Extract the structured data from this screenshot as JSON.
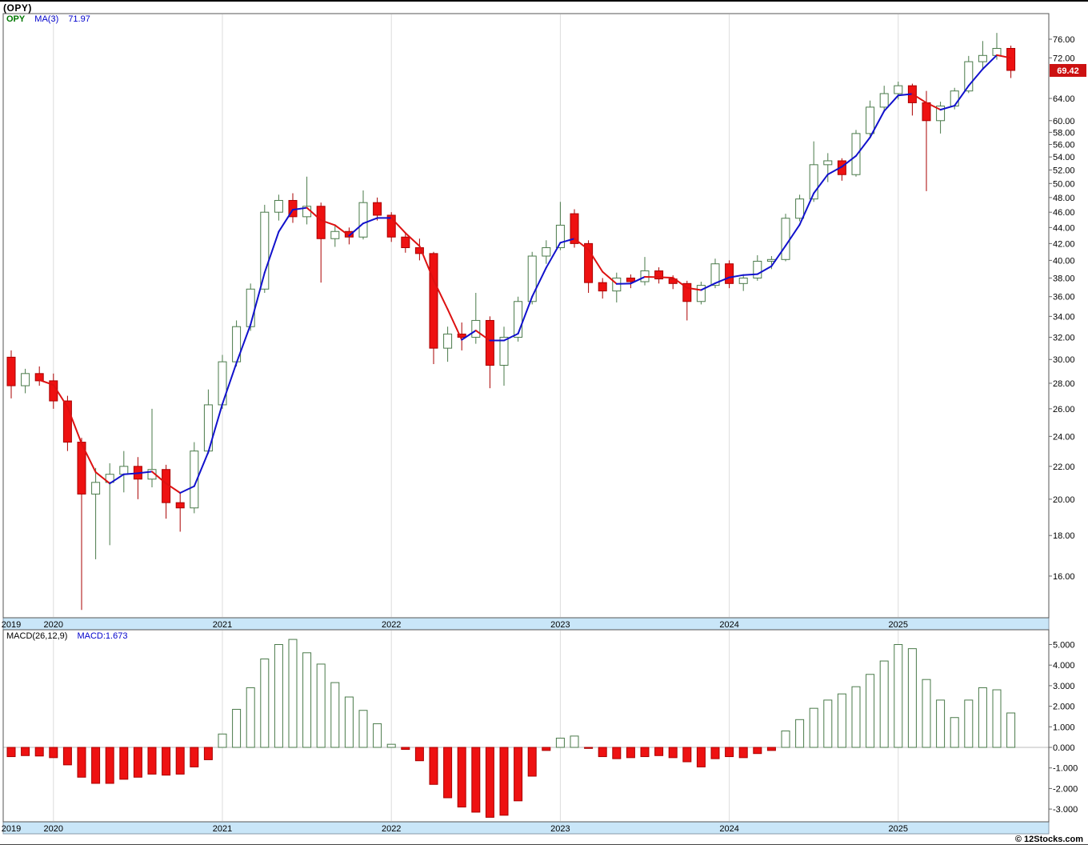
{
  "header": {
    "symbol_title": "(OPY)"
  },
  "price_panel": {
    "legend": {
      "symbol": "OPY",
      "ma_label": "MA(3)",
      "ma_value": "71.97"
    },
    "last_price_badge": "69.42",
    "axis_labels": [
      "76.00",
      "72.00",
      "64.00",
      "60.00",
      "58.00",
      "56.00",
      "54.00",
      "52.00",
      "50.00",
      "48.00",
      "46.00",
      "44.00",
      "42.00",
      "40.00",
      "38.00",
      "36.00",
      "34.00",
      "32.00",
      "30.00",
      "28.00",
      "26.00",
      "24.00",
      "22.00",
      "20.00",
      "18.00",
      "16.00"
    ],
    "x_axis_years": [
      "2019",
      "2020",
      "2021",
      "2022",
      "2023",
      "2024",
      "2025"
    ]
  },
  "macd_panel": {
    "legend": {
      "label": "MACD(26,12,9)",
      "value_label": "MACD:1.673"
    },
    "axis_labels": [
      "5.000",
      "4.000",
      "3.000",
      "2.000",
      "1.000",
      "0.000",
      "-1.000",
      "-2.000",
      "-3.000"
    ]
  },
  "footer": {
    "copyright": "© 12Stocks.com"
  },
  "colors": {
    "up_body_fill": "#ffffff",
    "up_border": "#4a7a4a",
    "down_fill": "#ee1111",
    "down_border": "#aa0000",
    "ma_up": "#1111cc",
    "ma_down": "#dd1111",
    "legend_blue": "#0000cc",
    "badge_bg": "#cc1111",
    "band_bg": "#c9e6f8",
    "band_border": "#8899aa",
    "panel_border": "#555555",
    "grid": "#dcdcdc",
    "zero_line": "#bbbbbb"
  },
  "chart_data": [
    {
      "type": "candlestick",
      "symbol": "OPY",
      "title": "(OPY)",
      "y_scale": "log",
      "ylim": [
        14.2,
        81.7
      ],
      "y_ticks": [
        76,
        72,
        64,
        60,
        58,
        56,
        54,
        52,
        50,
        48,
        46,
        44,
        42,
        40,
        38,
        36,
        34,
        32,
        30,
        28,
        26,
        24,
        22,
        20,
        18,
        16
      ],
      "ma": {
        "label": "MA(3)",
        "period": 3,
        "last_value": 71.97
      },
      "last_price": 69.42,
      "x_years": [
        "2019",
        "2020",
        "2021",
        "2022",
        "2023",
        "2024",
        "2025"
      ],
      "months": [
        "2019-10",
        "2019-11",
        "2019-12",
        "2020-01",
        "2020-02",
        "2020-03",
        "2020-04",
        "2020-05",
        "2020-06",
        "2020-07",
        "2020-08",
        "2020-09",
        "2020-10",
        "2020-11",
        "2020-12",
        "2021-01",
        "2021-02",
        "2021-03",
        "2021-04",
        "2021-05",
        "2021-06",
        "2021-07",
        "2021-08",
        "2021-09",
        "2021-10",
        "2021-11",
        "2021-12",
        "2022-01",
        "2022-02",
        "2022-03",
        "2022-04",
        "2022-05",
        "2022-06",
        "2022-07",
        "2022-08",
        "2022-09",
        "2022-10",
        "2022-11",
        "2022-12",
        "2023-01",
        "2023-02",
        "2023-03",
        "2023-04",
        "2023-05",
        "2023-06",
        "2023-07",
        "2023-08",
        "2023-09",
        "2023-10",
        "2023-11",
        "2023-12",
        "2024-01",
        "2024-02",
        "2024-03",
        "2024-04",
        "2024-05",
        "2024-06",
        "2024-07",
        "2024-08",
        "2024-09",
        "2024-10",
        "2024-11",
        "2024-12",
        "2025-01",
        "2025-02",
        "2025-03",
        "2025-04",
        "2025-05",
        "2025-06",
        "2025-07",
        "2025-08",
        "2025-09"
      ],
      "ohlc": [
        [
          30.2,
          30.8,
          26.8,
          27.8
        ],
        [
          27.8,
          29.2,
          27.2,
          28.8
        ],
        [
          28.8,
          29.4,
          27.8,
          28.2
        ],
        [
          28.2,
          28.8,
          26.0,
          26.6
        ],
        [
          26.6,
          27.0,
          23.0,
          23.6
        ],
        [
          23.6,
          23.9,
          14.5,
          20.3
        ],
        [
          20.3,
          21.9,
          16.8,
          21.0
        ],
        [
          21.0,
          22.2,
          17.5,
          21.5
        ],
        [
          21.5,
          23.0,
          20.4,
          22.0
        ],
        [
          22.0,
          22.6,
          20.0,
          21.2
        ],
        [
          21.2,
          26.0,
          20.7,
          21.8
        ],
        [
          21.8,
          22.1,
          18.9,
          19.8
        ],
        [
          19.8,
          20.4,
          18.2,
          19.5
        ],
        [
          19.5,
          23.6,
          19.2,
          23.0
        ],
        [
          23.0,
          27.5,
          22.8,
          26.3
        ],
        [
          26.3,
          30.4,
          26.0,
          29.8
        ],
        [
          29.8,
          33.6,
          29.4,
          33.0
        ],
        [
          33.0,
          37.4,
          32.6,
          36.8
        ],
        [
          36.8,
          47.0,
          36.4,
          46.0
        ],
        [
          46.0,
          48.4,
          44.9,
          47.6
        ],
        [
          47.6,
          48.6,
          44.6,
          45.4
        ],
        [
          45.4,
          51.0,
          44.4,
          46.8
        ],
        [
          46.8,
          47.3,
          37.5,
          42.6
        ],
        [
          42.6,
          44.2,
          41.6,
          43.5
        ],
        [
          43.5,
          44.0,
          41.9,
          42.8
        ],
        [
          42.8,
          49.0,
          42.5,
          47.3
        ],
        [
          47.3,
          48.0,
          44.9,
          45.6
        ],
        [
          45.6,
          46.0,
          42.2,
          42.8
        ],
        [
          42.8,
          43.2,
          40.9,
          41.5
        ],
        [
          41.5,
          42.6,
          40.0,
          40.8
        ],
        [
          40.8,
          41.0,
          29.6,
          31.0
        ],
        [
          31.0,
          33.0,
          29.8,
          32.3
        ],
        [
          32.3,
          33.4,
          30.8,
          32.0
        ],
        [
          32.0,
          36.4,
          31.4,
          33.6
        ],
        [
          33.6,
          34.0,
          27.6,
          29.5
        ],
        [
          29.5,
          33.0,
          27.8,
          32.0
        ],
        [
          32.0,
          36.0,
          31.6,
          35.5
        ],
        [
          35.5,
          41.0,
          35.2,
          40.5
        ],
        [
          40.5,
          42.4,
          39.6,
          41.5
        ],
        [
          41.5,
          47.4,
          41.2,
          44.3
        ],
        [
          45.8,
          46.4,
          41.5,
          42.0
        ],
        [
          42.0,
          42.4,
          36.4,
          37.5
        ],
        [
          37.5,
          38.0,
          35.8,
          36.6
        ],
        [
          36.6,
          38.6,
          35.4,
          38.0
        ],
        [
          38.0,
          38.4,
          36.9,
          37.6
        ],
        [
          37.6,
          40.4,
          37.2,
          38.8
        ],
        [
          38.8,
          39.2,
          37.4,
          37.9
        ],
        [
          37.9,
          38.3,
          36.8,
          37.4
        ],
        [
          37.4,
          37.7,
          33.6,
          35.5
        ],
        [
          35.5,
          37.6,
          35.2,
          37.2
        ],
        [
          37.2,
          40.2,
          36.9,
          39.6
        ],
        [
          39.6,
          40.0,
          36.9,
          37.4
        ],
        [
          37.4,
          38.4,
          36.6,
          38.0
        ],
        [
          38.0,
          40.6,
          37.7,
          39.9
        ],
        [
          39.9,
          40.5,
          39.0,
          40.1
        ],
        [
          40.1,
          45.8,
          39.9,
          45.2
        ],
        [
          45.2,
          48.4,
          44.8,
          47.8
        ],
        [
          47.8,
          56.5,
          47.4,
          52.8
        ],
        [
          52.8,
          54.6,
          50.2,
          53.4
        ],
        [
          53.4,
          53.8,
          50.4,
          51.3
        ],
        [
          51.3,
          58.4,
          51.0,
          57.8
        ],
        [
          57.8,
          63.6,
          57.4,
          62.4
        ],
        [
          62.4,
          66.4,
          61.8,
          64.9
        ],
        [
          64.9,
          67.2,
          63.8,
          66.4
        ],
        [
          66.4,
          66.8,
          60.9,
          63.2
        ],
        [
          63.2,
          65.4,
          48.9,
          60.0
        ],
        [
          60.0,
          63.4,
          57.8,
          62.6
        ],
        [
          62.6,
          66.0,
          62.0,
          65.4
        ],
        [
          65.4,
          72.4,
          65.0,
          71.2
        ],
        [
          71.2,
          75.6,
          69.8,
          72.5
        ],
        [
          72.5,
          77.4,
          71.6,
          74.0
        ],
        [
          74.0,
          74.6,
          67.9,
          69.42
        ]
      ]
    },
    {
      "type": "bar",
      "title": "MACD(26,12,9)",
      "last_value": 1.673,
      "ylim": [
        -3.6,
        5.7
      ],
      "y_ticks": [
        5,
        4,
        3,
        2,
        1,
        0,
        -1,
        -2,
        -3
      ],
      "values": [
        -0.45,
        -0.4,
        -0.42,
        -0.5,
        -0.85,
        -1.45,
        -1.75,
        -1.75,
        -1.55,
        -1.45,
        -1.3,
        -1.35,
        -1.3,
        -0.95,
        -0.6,
        0.65,
        1.85,
        2.9,
        4.3,
        5.0,
        5.25,
        4.6,
        4.05,
        3.15,
        2.45,
        1.8,
        1.15,
        0.15,
        -0.1,
        -0.65,
        -1.8,
        -2.45,
        -2.9,
        -3.15,
        -3.4,
        -3.3,
        -2.6,
        -1.4,
        -0.15,
        0.45,
        0.55,
        -0.05,
        -0.45,
        -0.55,
        -0.5,
        -0.45,
        -0.4,
        -0.5,
        -0.7,
        -0.95,
        -0.55,
        -0.45,
        -0.5,
        -0.3,
        -0.15,
        0.8,
        1.35,
        1.9,
        2.3,
        2.6,
        2.95,
        3.55,
        4.2,
        5.0,
        4.8,
        3.3,
        2.3,
        1.45,
        2.3,
        2.9,
        2.8,
        1.673
      ]
    }
  ]
}
